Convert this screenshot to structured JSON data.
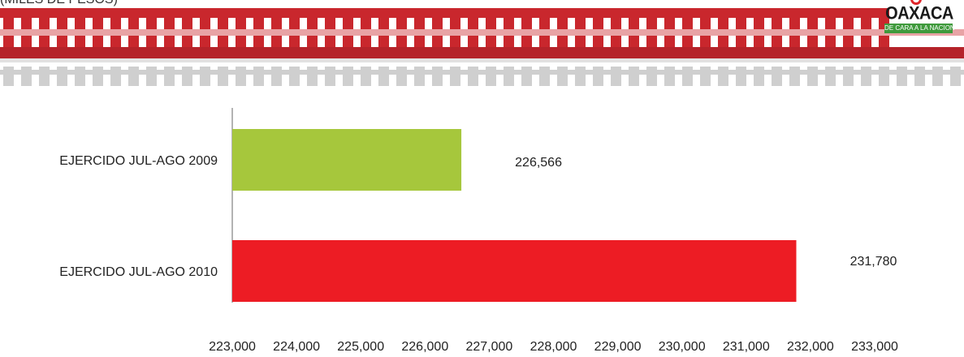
{
  "header": {
    "partial_title": "(MILES DE PESOS)",
    "logo_word": "OAXACA",
    "logo_tagline": "DE CARA A LA NACION",
    "stripe_color_dark": "#c9272d",
    "stripe_color_light": "#cfcfcf"
  },
  "chart_data": {
    "type": "bar",
    "orientation": "horizontal",
    "categories": [
      "EJERCIDO JUL-AGO 2009",
      "EJERCIDO JUL-AGO 2010"
    ],
    "values": [
      226566,
      231780
    ],
    "value_labels": [
      "226,566",
      "231,780"
    ],
    "colors": [
      "#a6c73c",
      "#ed1c24"
    ],
    "xlim": [
      223000,
      233000
    ],
    "x_ticks": [
      223000,
      224000,
      225000,
      226000,
      227000,
      228000,
      229000,
      230000,
      231000,
      232000,
      233000
    ],
    "x_tick_labels": [
      "223,000",
      "224,000",
      "225,000",
      "226,000",
      "227,000",
      "228,000",
      "229,000",
      "230,000",
      "231,000",
      "232,000",
      "233,000"
    ],
    "grid": false,
    "legend": "none"
  }
}
